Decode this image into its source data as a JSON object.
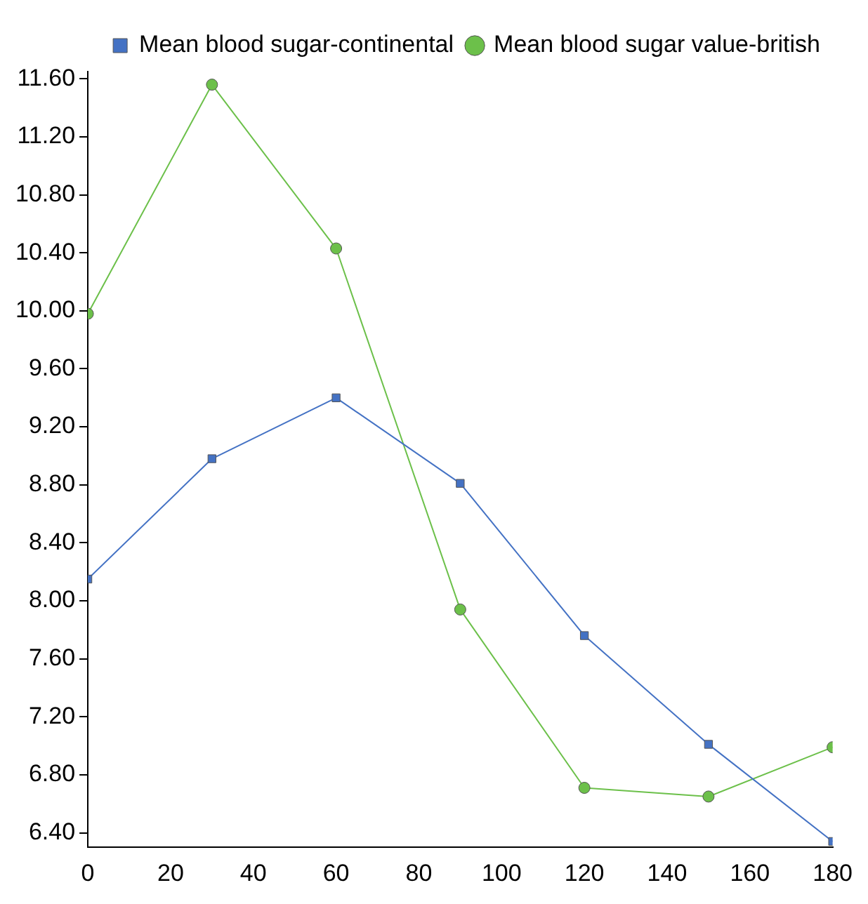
{
  "chart_data": {
    "type": "line",
    "x": [
      0,
      30,
      60,
      90,
      120,
      150,
      180
    ],
    "series": [
      {
        "name": "Mean blood sugar-continental",
        "color": "#4472c4",
        "marker": "square",
        "values": [
          8.15,
          8.98,
          9.4,
          8.81,
          7.76,
          7.01,
          6.34
        ]
      },
      {
        "name": "Mean blood sugar value-british",
        "color": "#6cc04a",
        "marker": "circle",
        "values": [
          9.98,
          11.56,
          10.43,
          7.94,
          6.71,
          6.65,
          6.99
        ]
      }
    ],
    "xlim": [
      0,
      180
    ],
    "xticks": [
      0,
      20,
      40,
      60,
      80,
      100,
      120,
      140,
      160,
      180
    ],
    "ylim": [
      6.3,
      11.65
    ],
    "yticks": [
      {
        "value": 6.4,
        "label": "6.40"
      },
      {
        "value": 6.8,
        "label": "6.80"
      },
      {
        "value": 7.2,
        "label": "7.20"
      },
      {
        "value": 7.6,
        "label": "7.60"
      },
      {
        "value": 8.0,
        "label": "8.00"
      },
      {
        "value": 8.4,
        "label": "8.40"
      },
      {
        "value": 8.8,
        "label": "8.80"
      },
      {
        "value": 9.2,
        "label": "9.20"
      },
      {
        "value": 9.6,
        "label": "9.60"
      },
      {
        "value": 10.0,
        "label": "10.00"
      },
      {
        "value": 10.4,
        "label": "10.40"
      },
      {
        "value": 10.8,
        "label": "10.80"
      },
      {
        "value": 11.2,
        "label": "11.20"
      },
      {
        "value": 11.6,
        "label": "11.60"
      }
    ],
    "grid": false,
    "legend": "top right",
    "line_style": "solid"
  }
}
